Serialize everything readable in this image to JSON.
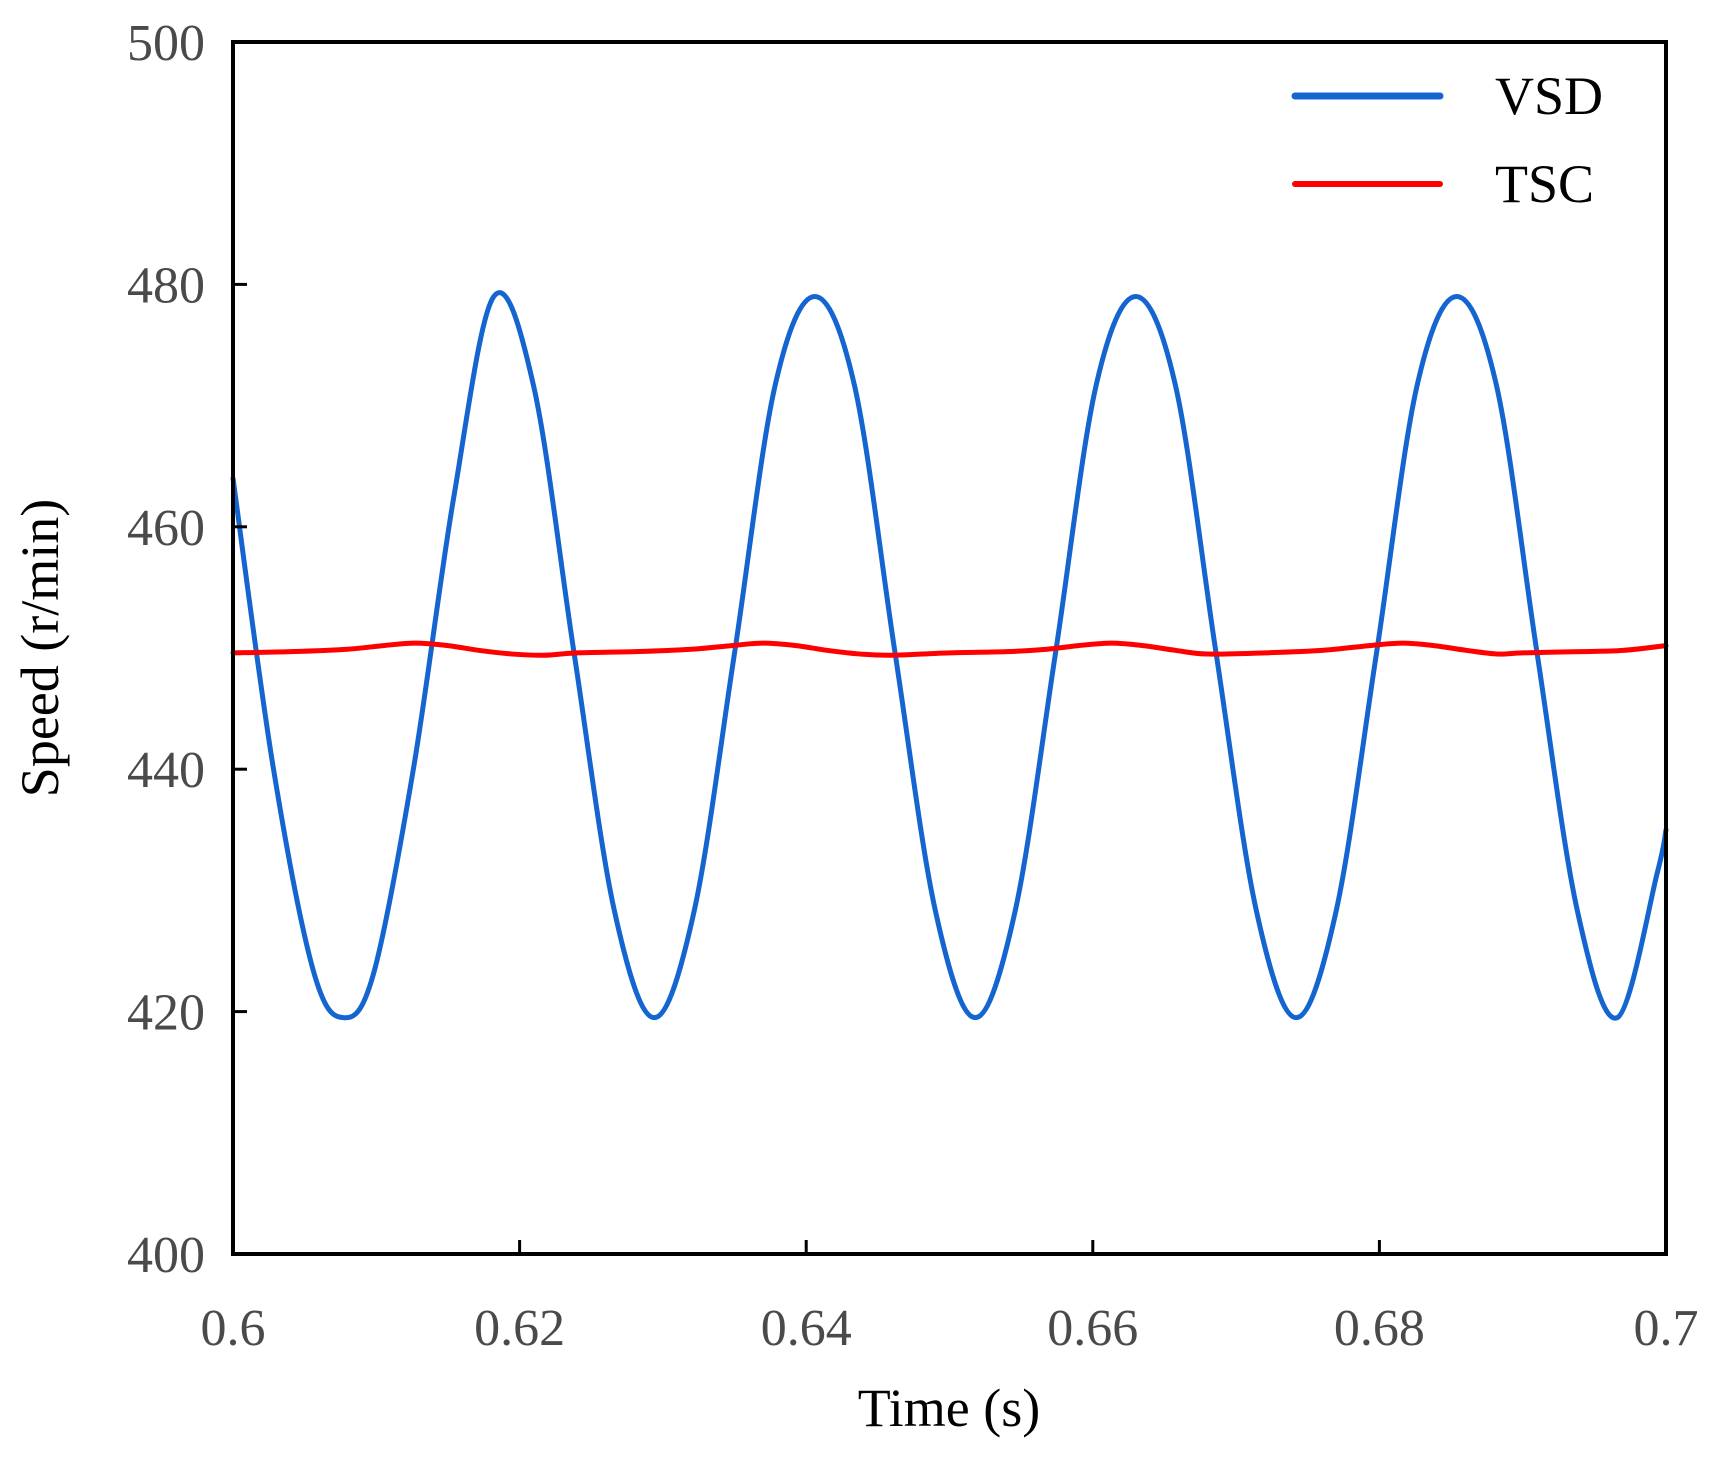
{
  "chart_data": {
    "type": "line",
    "title": "",
    "xlabel": "Time (s)",
    "ylabel": "Speed (r/min)",
    "xlim": [
      0.6,
      0.7
    ],
    "ylim": [
      400,
      500
    ],
    "xticks": [
      0.6,
      0.62,
      0.64,
      0.66,
      0.68,
      0.7
    ],
    "xtick_labels": [
      "0.6",
      "0.62",
      "0.64",
      "0.66",
      "0.68",
      "0.7"
    ],
    "yticks": [
      400,
      420,
      440,
      460,
      480,
      500
    ],
    "ytick_labels": [
      "400",
      "420",
      "440",
      "460",
      "480",
      "500"
    ],
    "grid": false,
    "legend_position": "top-right",
    "series": [
      {
        "name": "VSD",
        "color": "#1565d0",
        "x": [
          0.6,
          0.6028,
          0.6056,
          0.6077,
          0.6098,
          0.6126,
          0.6154,
          0.6182,
          0.621,
          0.6238,
          0.6266,
          0.6294,
          0.6322,
          0.635,
          0.6378,
          0.6406,
          0.6434,
          0.6462,
          0.649,
          0.6518,
          0.6546,
          0.6574,
          0.6602,
          0.663,
          0.6658,
          0.6686,
          0.6714,
          0.6742,
          0.677,
          0.6798,
          0.6826,
          0.6854,
          0.6882,
          0.691,
          0.6938,
          0.6966,
          0.6994,
          0.7
        ],
        "values": [
          464.0,
          440.2,
          423.4,
          419.5,
          423.1,
          440.1,
          462.4,
          479.0,
          471.5,
          449.6,
          428.4,
          419.5,
          428.4,
          449.6,
          471.5,
          479.0,
          471.5,
          449.6,
          428.4,
          419.5,
          428.4,
          449.6,
          471.5,
          479.0,
          471.5,
          449.6,
          428.4,
          419.5,
          428.4,
          449.6,
          471.5,
          479.0,
          471.5,
          449.6,
          428.4,
          419.5,
          431.5,
          435.0
        ]
      },
      {
        "name": "TSC",
        "color": "#ff0000",
        "x": [
          0.6,
          0.604,
          0.608,
          0.6105,
          0.6127,
          0.615,
          0.6172,
          0.6195,
          0.6217,
          0.624,
          0.628,
          0.632,
          0.6348,
          0.637,
          0.6393,
          0.6415,
          0.6438,
          0.646,
          0.65,
          0.654,
          0.6568,
          0.659,
          0.6613,
          0.6635,
          0.6658,
          0.668,
          0.672,
          0.676,
          0.6793,
          0.6816,
          0.6838,
          0.6861,
          0.6883,
          0.69,
          0.694,
          0.697,
          0.7
        ],
        "values": [
          449.6,
          449.7,
          449.9,
          450.2,
          450.4,
          450.2,
          449.8,
          449.5,
          449.4,
          449.6,
          449.7,
          449.9,
          450.2,
          450.4,
          450.2,
          449.8,
          449.5,
          449.4,
          449.6,
          449.7,
          449.9,
          450.2,
          450.4,
          450.2,
          449.8,
          449.5,
          449.6,
          449.8,
          450.2,
          450.4,
          450.2,
          449.8,
          449.5,
          449.6,
          449.7,
          449.8,
          450.2
        ]
      }
    ]
  }
}
